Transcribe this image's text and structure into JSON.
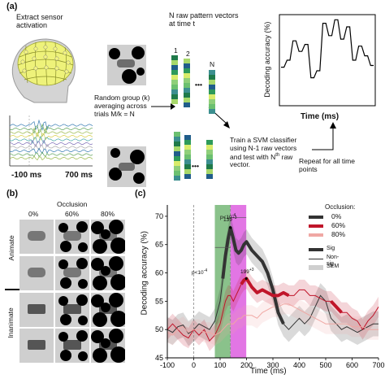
{
  "panel_a": {
    "label": "(a)",
    "step1": "Extract sensor\nactivation",
    "time_start": "-100 ms",
    "time_end": "700 ms",
    "step2": "Random group (k)\naveraging across\ntrials M/k = N",
    "step3_title": "N raw pattern vectors\nat time t",
    "vec_labels": [
      "1",
      "2",
      "N"
    ],
    "step4": "Train a SVM classifier\nusing N-1 raw vectors\nand test with N",
    "step4_sup": "th",
    "step4_tail": " raw\nvector.",
    "step5": "Repeat for all time\npoints",
    "mini_ylabel": "Decoding accuracy (%)",
    "mini_xlabel": "Time (ms)",
    "mini_series": [
      42,
      42,
      50,
      50,
      72,
      72,
      60,
      60,
      68,
      68,
      30,
      30,
      38,
      38,
      92,
      92,
      78,
      78,
      96,
      96,
      74,
      74,
      88,
      88,
      50,
      50,
      66,
      66,
      55,
      55,
      44,
      44
    ]
  },
  "panel_b": {
    "label": "(b)",
    "title": "Occlusion",
    "cols": [
      "0%",
      "60%",
      "80%"
    ],
    "row_animate": "Animate",
    "row_inanimate": "Inanimate"
  },
  "panel_c": {
    "label": "(c)",
    "ann_p_top": "p<10",
    "ann_p_top_exp": "-4",
    "ann_p_left": "p<10",
    "ann_p_left_exp": "-4",
    "peak1": "139",
    "peak1_exp": "+3",
    "peak2": "199",
    "peak2_exp": "+3",
    "legend_title": "Occlusion:",
    "legend": [
      {
        "label": "0%",
        "color": "#333333"
      },
      {
        "label": "60%",
        "color": "#c0152a"
      },
      {
        "label": "80%",
        "color": "#f0a8a4"
      }
    ],
    "legend2": [
      {
        "label": "Sig",
        "style": "thick"
      },
      {
        "label": "Non-sig",
        "style": "thin"
      },
      {
        "label": "SEM",
        "style": "band"
      }
    ],
    "colors": {
      "c0": "#333333",
      "c60": "#c0152a",
      "c80": "#f0a8a4",
      "green": "#58a85a",
      "magenta": "#d63cd8"
    }
  },
  "chart_data": {
    "type": "line",
    "xlabel": "Time (ms)",
    "ylabel": "Decoding accuracy (%)",
    "xlim": [
      -100,
      700
    ],
    "ylim": [
      45,
      72
    ],
    "xticks": [
      -100,
      0,
      100,
      200,
      300,
      400,
      500,
      600,
      700
    ],
    "yticks": [
      45,
      50,
      55,
      60,
      65,
      70
    ],
    "x": [
      -100,
      -80,
      -60,
      -40,
      -20,
      0,
      20,
      40,
      60,
      80,
      100,
      110,
      120,
      130,
      139,
      150,
      160,
      170,
      180,
      190,
      200,
      220,
      240,
      260,
      280,
      300,
      320,
      340,
      360,
      380,
      400,
      420,
      440,
      460,
      480,
      500,
      520,
      540,
      560,
      580,
      600,
      620,
      640,
      660,
      680,
      700
    ],
    "series": [
      {
        "name": "0%",
        "values": [
          50,
          49.5,
          50.5,
          50.8,
          49.3,
          50,
          51,
          50.5,
          50,
          51.5,
          55,
          59,
          63,
          66,
          68,
          66,
          64,
          63.5,
          64,
          65,
          65.5,
          64,
          63,
          62,
          60,
          57,
          53,
          51,
          50,
          51,
          52,
          51,
          52,
          54,
          56,
          55,
          52,
          51,
          50,
          50.5,
          50,
          49.5,
          50,
          50.5,
          51,
          51
        ]
      },
      {
        "name": "60%",
        "values": [
          50,
          51,
          50,
          49,
          48.5,
          50,
          49,
          50,
          48,
          49,
          51,
          53,
          55,
          56,
          56,
          55,
          56,
          57,
          58,
          58.7,
          59,
          57.5,
          56.5,
          57,
          56.5,
          56,
          56,
          56.5,
          56,
          56,
          57,
          57,
          56,
          56,
          55.5,
          55,
          55,
          54,
          53,
          53,
          52,
          51.5,
          50,
          51.5,
          52.5,
          54
        ]
      },
      {
        "name": "80%",
        "values": [
          49.5,
          49,
          50,
          50.5,
          49.5,
          50,
          50,
          49.5,
          49.5,
          49,
          49.5,
          50,
          50.5,
          51,
          51,
          51,
          51.5,
          52,
          52,
          52.5,
          52.5,
          52.5,
          52,
          53,
          53.5,
          54,
          54,
          54.5,
          54.5,
          54,
          53.5,
          53,
          52.5,
          52,
          51.5,
          51,
          51,
          51,
          51,
          51,
          50.5,
          50.5,
          50.5,
          50,
          50,
          50
        ]
      }
    ],
    "sig_windows": [
      {
        "series": "0%",
        "from": 110,
        "to": 350
      },
      {
        "series": "60%",
        "from": 180,
        "to": 360
      },
      {
        "series": "60%",
        "from": 520,
        "to": 560
      }
    ],
    "shaded_regions": [
      {
        "from": 80,
        "to": 139,
        "color": "green"
      },
      {
        "from": 139,
        "to": 199,
        "color": "magenta"
      }
    ],
    "vlines": [
      0,
      139
    ],
    "peaks": [
      {
        "x": 139,
        "y": 68,
        "label": "139+3"
      },
      {
        "x": 199,
        "y": 59,
        "label": "199+3"
      }
    ]
  }
}
